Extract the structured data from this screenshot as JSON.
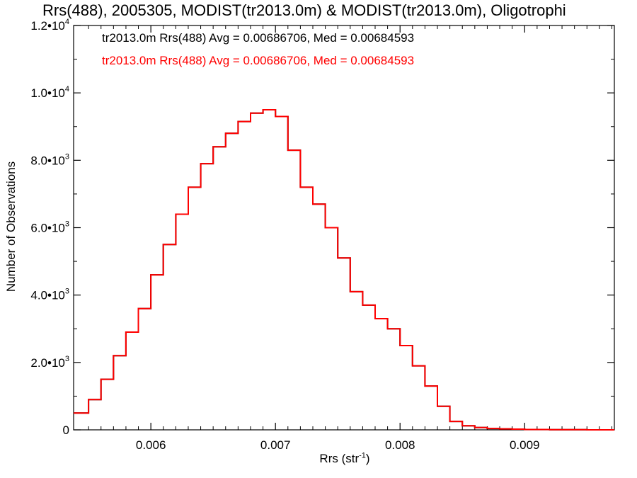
{
  "chart_data": {
    "type": "line",
    "step": true,
    "title": "Rrs(488), 2005305, MODIST(tr2013.0m) & MODIST(tr2013.0m), Oligotrophi",
    "xlabel_main": "Rrs (str",
    "xlabel_sup": "-1",
    "xlabel_tail": ")",
    "ylabel": "Number of Observations",
    "xlim": [
      0.00538,
      0.00972
    ],
    "ylim": [
      0,
      12000
    ],
    "x_ticks": [
      {
        "value": 0.006,
        "label": "0.006"
      },
      {
        "value": 0.007,
        "label": "0.007"
      },
      {
        "value": 0.008,
        "label": "0.008"
      },
      {
        "value": 0.009,
        "label": "0.009"
      }
    ],
    "y_ticks": [
      {
        "value": 0,
        "mant": "0",
        "exp": ""
      },
      {
        "value": 2000,
        "mant": "2.0•10",
        "exp": "3"
      },
      {
        "value": 4000,
        "mant": "4.0•10",
        "exp": "3"
      },
      {
        "value": 6000,
        "mant": "6.0•10",
        "exp": "3"
      },
      {
        "value": 8000,
        "mant": "8.0•10",
        "exp": "3"
      },
      {
        "value": 10000,
        "mant": "1.0•10",
        "exp": "4"
      },
      {
        "value": 12000,
        "mant": "1.2•10",
        "exp": "4"
      }
    ],
    "series": [
      {
        "name": "tr2013.0m Rrs(488) Avg = 0.00686706, Med = 0.00684593",
        "color": "#000000",
        "x": [
          0.00538,
          0.0055,
          0.0056,
          0.0057,
          0.0058,
          0.0059,
          0.006,
          0.0061,
          0.0062,
          0.0063,
          0.0064,
          0.0065,
          0.0066,
          0.0067,
          0.0068,
          0.0069,
          0.007,
          0.0071,
          0.0072,
          0.0073,
          0.0074,
          0.0075,
          0.0076,
          0.0077,
          0.0078,
          0.0079,
          0.008,
          0.0081,
          0.0082,
          0.0083,
          0.0084,
          0.0085,
          0.0086,
          0.0087,
          0.0088,
          0.0089,
          0.009,
          0.0092,
          0.0095,
          0.0097
        ],
        "y": [
          500,
          900,
          1500,
          2200,
          2900,
          3600,
          4600,
          5500,
          6400,
          7200,
          7900,
          8400,
          8800,
          9150,
          9400,
          9500,
          9300,
          8300,
          7200,
          6700,
          6000,
          5100,
          4100,
          3700,
          3300,
          3000,
          2500,
          1900,
          1300,
          700,
          250,
          120,
          70,
          40,
          30,
          20,
          10,
          5,
          0,
          0
        ]
      },
      {
        "name": "tr2013.0m Rrs(488) Avg = 0.00686706, Med = 0.00684593",
        "color": "#ff0000",
        "x": [
          0.00538,
          0.0055,
          0.0056,
          0.0057,
          0.0058,
          0.0059,
          0.006,
          0.0061,
          0.0062,
          0.0063,
          0.0064,
          0.0065,
          0.0066,
          0.0067,
          0.0068,
          0.0069,
          0.007,
          0.0071,
          0.0072,
          0.0073,
          0.0074,
          0.0075,
          0.0076,
          0.0077,
          0.0078,
          0.0079,
          0.008,
          0.0081,
          0.0082,
          0.0083,
          0.0084,
          0.0085,
          0.0086,
          0.0087,
          0.0088,
          0.0089,
          0.009,
          0.0092,
          0.0095,
          0.0097
        ],
        "y": [
          500,
          900,
          1500,
          2200,
          2900,
          3600,
          4600,
          5500,
          6400,
          7200,
          7900,
          8400,
          8800,
          9150,
          9400,
          9500,
          9300,
          8300,
          7200,
          6700,
          6000,
          5100,
          4100,
          3700,
          3300,
          3000,
          2500,
          1900,
          1300,
          700,
          250,
          120,
          70,
          40,
          30,
          20,
          10,
          5,
          0,
          0
        ]
      }
    ]
  }
}
